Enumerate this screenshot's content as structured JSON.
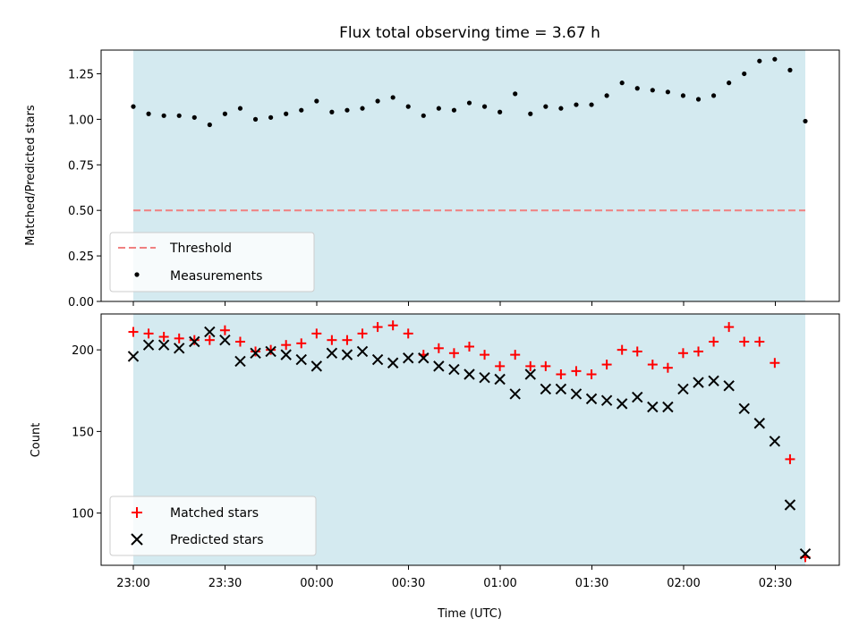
{
  "chart_data": {
    "type": "scatter",
    "title": "Flux total observing time = 3.67 h",
    "xlabel": "Time (UTC)",
    "xticks": [
      "23:00",
      "23:30",
      "00:00",
      "00:30",
      "01:00",
      "01:30",
      "02:00",
      "02:30"
    ],
    "shade_color": "#d4eaf0",
    "panels": [
      {
        "ylabel": "Matched/Predicted stars",
        "ylim": [
          0,
          1.38
        ],
        "yticks": [
          "0.00",
          "0.25",
          "0.50",
          "0.75",
          "1.00",
          "1.25"
        ],
        "threshold": {
          "name": "Threshold",
          "value": 0.5,
          "color": "#f08080"
        },
        "legend": {
          "position": "lower-left",
          "entries": [
            "Threshold",
            "Measurements"
          ]
        },
        "series": [
          {
            "name": "Measurements",
            "marker": "dot",
            "color": "#000000",
            "values": [
              1.07,
              1.03,
              1.02,
              1.02,
              1.01,
              0.97,
              1.03,
              1.06,
              1.0,
              1.01,
              1.03,
              1.05,
              1.1,
              1.04,
              1.05,
              1.06,
              1.1,
              1.12,
              1.07,
              1.02,
              1.06,
              1.05,
              1.09,
              1.07,
              1.04,
              1.14,
              1.03,
              1.07,
              1.06,
              1.08,
              1.08,
              1.13,
              1.2,
              1.17,
              1.16,
              1.15,
              1.13,
              1.11,
              1.13,
              1.2,
              1.25,
              1.32,
              1.33,
              1.27,
              0.99
            ]
          }
        ]
      },
      {
        "ylabel": "Count",
        "ylim": [
          68,
          222
        ],
        "yticks": [
          "100",
          "150",
          "200"
        ],
        "legend": {
          "position": "lower-left",
          "entries": [
            "Matched stars",
            "Predicted stars"
          ]
        },
        "series": [
          {
            "name": "Matched stars",
            "marker": "plus",
            "color": "#ff0000",
            "values": [
              211,
              210,
              208,
              207,
              206,
              206,
              212,
              205,
              199,
              200,
              203,
              204,
              210,
              206,
              206,
              210,
              214,
              215,
              210,
              197,
              201,
              198,
              202,
              197,
              190,
              197,
              190,
              190,
              185,
              187,
              185,
              191,
              200,
              199,
              191,
              189,
              198,
              199,
              205,
              214,
              205,
              205,
              192,
              133,
              73
            ]
          },
          {
            "name": "Predicted stars",
            "marker": "x",
            "color": "#000000",
            "values": [
              196,
              203,
              203,
              201,
              205,
              211,
              206,
              193,
              198,
              199,
              197,
              194,
              190,
              198,
              197,
              199,
              194,
              192,
              195,
              195,
              190,
              188,
              185,
              183,
              182,
              173,
              185,
              176,
              176,
              173,
              170,
              169,
              167,
              171,
              165,
              165,
              176,
              180,
              181,
              178,
              164,
              155,
              144,
              105,
              75
            ]
          }
        ]
      }
    ]
  }
}
